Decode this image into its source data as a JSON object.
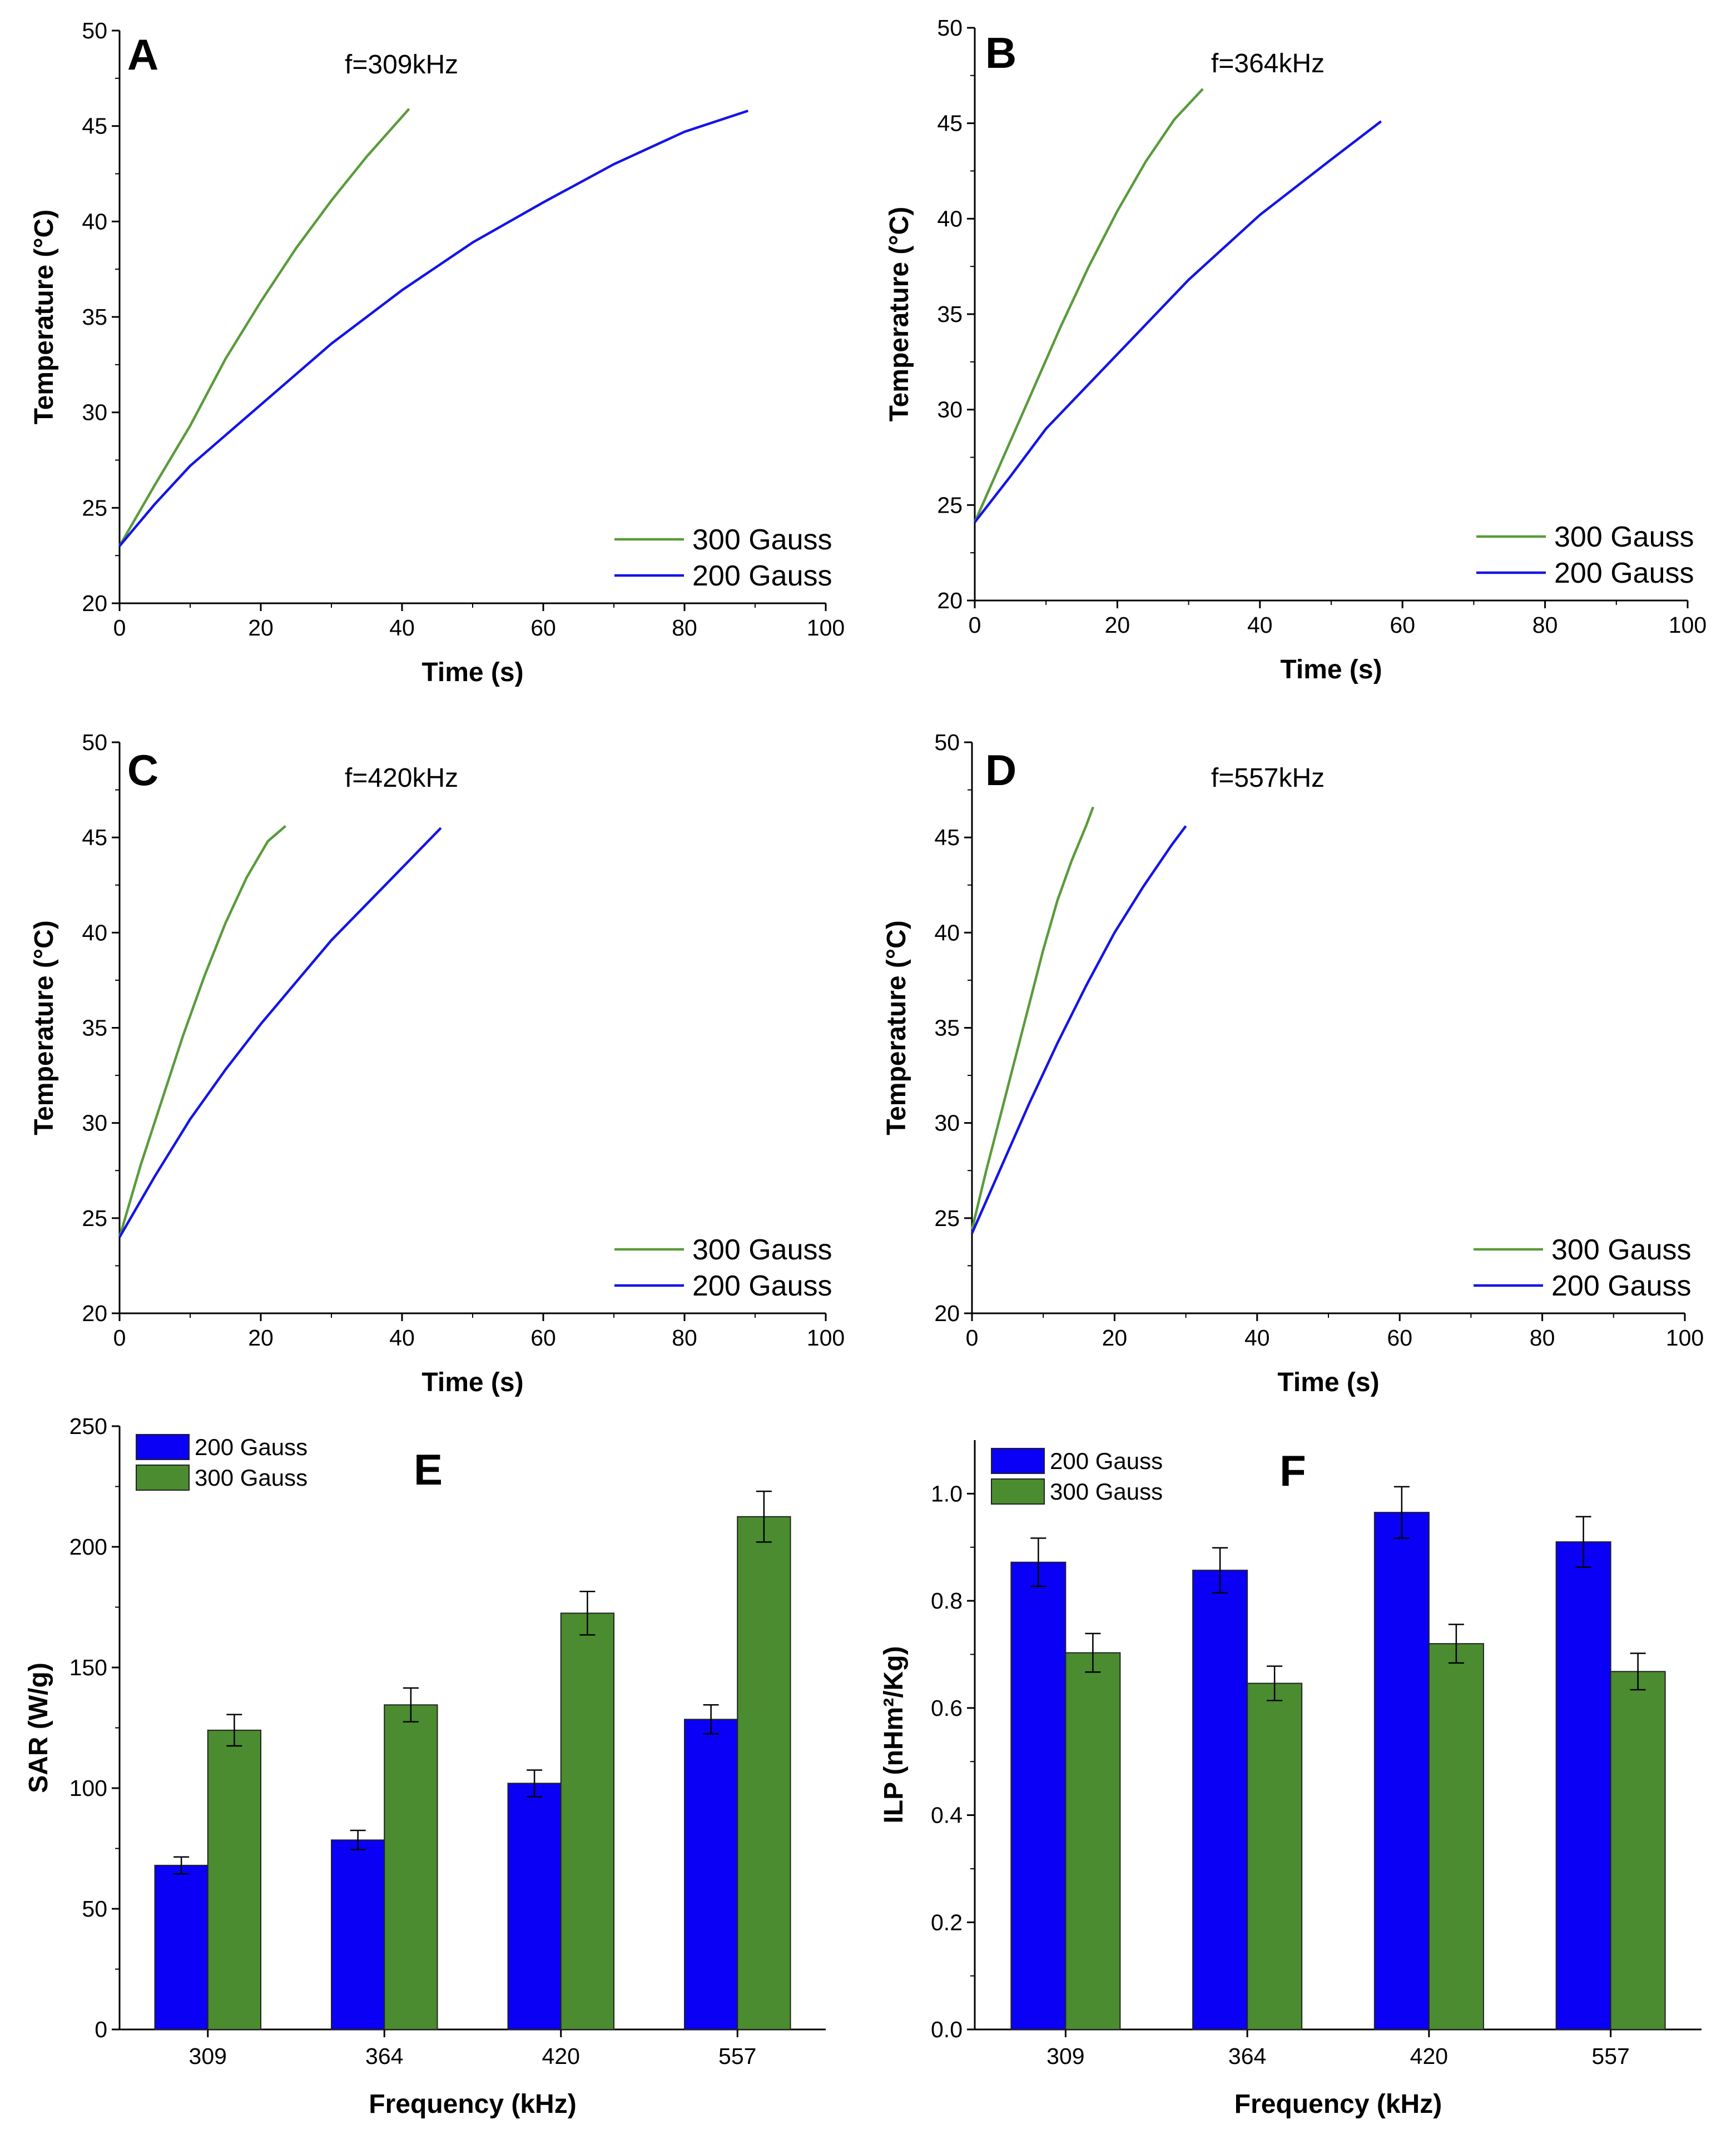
{
  "chart_data": [
    {
      "panel": "A",
      "type": "line",
      "annotation": "f=309kHz",
      "xlabel": "Time (s)",
      "ylabel": "Temperature (°C)",
      "xlim": [
        0,
        100
      ],
      "ylim": [
        20,
        50
      ],
      "xticks": [
        "0",
        "20",
        "40",
        "60",
        "80",
        "100"
      ],
      "yticks": [
        "20",
        "25",
        "30",
        "35",
        "40",
        "45",
        "50"
      ],
      "legend": [
        "300 Gauss",
        "200 Gauss"
      ],
      "series": [
        {
          "name": "300 Gauss",
          "color": "#5a9b3c",
          "x": [
            0,
            5,
            10,
            15,
            20,
            25,
            30,
            35,
            41
          ],
          "y": [
            23,
            26.2,
            29.3,
            32.8,
            35.8,
            38.6,
            41.1,
            43.4,
            45.9
          ]
        },
        {
          "name": "200 Gauss",
          "color": "#1414e6",
          "x": [
            0,
            5,
            10,
            20,
            30,
            40,
            50,
            60,
            70,
            80,
            89
          ],
          "y": [
            23,
            25.2,
            27.2,
            30.4,
            33.6,
            36.4,
            38.9,
            41,
            43,
            44.7,
            45.8
          ]
        }
      ]
    },
    {
      "panel": "B",
      "type": "line",
      "annotation": "f=364kHz",
      "xlabel": "Time (s)",
      "ylabel": "Temperature (°C)",
      "xlim": [
        0,
        100
      ],
      "ylim": [
        20,
        50
      ],
      "xticks": [
        "0",
        "20",
        "40",
        "60",
        "80",
        "100"
      ],
      "yticks": [
        "20",
        "25",
        "30",
        "35",
        "40",
        "45",
        "50"
      ],
      "legend": [
        "300 Gauss",
        "200 Gauss"
      ],
      "series": [
        {
          "name": "300 Gauss",
          "color": "#5a9b3c",
          "x": [
            0,
            4,
            8,
            12,
            16,
            20,
            24,
            28,
            32
          ],
          "y": [
            24.1,
            27.5,
            30.9,
            34.3,
            37.5,
            40.4,
            43,
            45.2,
            46.8
          ]
        },
        {
          "name": "200 Gauss",
          "color": "#1414e6",
          "x": [
            0,
            5,
            10,
            20,
            30,
            40,
            50,
            57
          ],
          "y": [
            24.1,
            26.5,
            29,
            32.9,
            36.8,
            40.2,
            43.1,
            45.1
          ]
        }
      ]
    },
    {
      "panel": "C",
      "type": "line",
      "annotation": "f=420kHz",
      "xlabel": "Time (s)",
      "ylabel": "Temperature (°C)",
      "xlim": [
        0,
        100
      ],
      "ylim": [
        20,
        50
      ],
      "xticks": [
        "0",
        "20",
        "40",
        "60",
        "80",
        "100"
      ],
      "yticks": [
        "20",
        "25",
        "30",
        "35",
        "40",
        "45",
        "50"
      ],
      "legend": [
        "300 Gauss",
        "200 Gauss"
      ],
      "series": [
        {
          "name": "300 Gauss",
          "color": "#5a9b3c",
          "x": [
            0,
            3,
            6,
            9,
            12,
            15,
            18,
            21,
            23.5
          ],
          "y": [
            24,
            27.8,
            31.2,
            34.6,
            37.7,
            40.5,
            42.9,
            44.8,
            45.6
          ]
        },
        {
          "name": "200 Gauss",
          "color": "#1414e6",
          "x": [
            0,
            5,
            10,
            15,
            20,
            25,
            30,
            35,
            40,
            45.5
          ],
          "y": [
            24,
            27.2,
            30.2,
            32.8,
            35.2,
            37.4,
            39.6,
            41.5,
            43.4,
            45.5
          ]
        }
      ]
    },
    {
      "panel": "D",
      "type": "line",
      "annotation": "f=557kHz",
      "xlabel": "Time (s)",
      "ylabel": "Temperature (°C)",
      "xlim": [
        0,
        100
      ],
      "ylim": [
        20,
        50
      ],
      "xticks": [
        "0",
        "20",
        "40",
        "60",
        "80",
        "100"
      ],
      "yticks": [
        "20",
        "25",
        "30",
        "35",
        "40",
        "45",
        "50"
      ],
      "legend": [
        "300 Gauss",
        "200 Gauss"
      ],
      "series": [
        {
          "name": "300 Gauss",
          "color": "#5a9b3c",
          "x": [
            0,
            2,
            4,
            6,
            8,
            10,
            12,
            14,
            16,
            17
          ],
          "y": [
            24.4,
            27.5,
            30.4,
            33.3,
            36.2,
            39.1,
            41.7,
            43.8,
            45.6,
            46.6
          ]
        },
        {
          "name": "200 Gauss",
          "color": "#1414e6",
          "x": [
            0,
            4,
            8,
            12,
            16,
            20,
            24,
            28,
            30
          ],
          "y": [
            24.2,
            27.6,
            31,
            34.2,
            37.2,
            40,
            42.4,
            44.6,
            45.6
          ]
        }
      ]
    },
    {
      "panel": "E",
      "type": "bar",
      "xlabel": "Frequency (kHz)",
      "ylabel": "SAR (W/g)",
      "ylim": [
        0,
        250
      ],
      "yticks": [
        "0",
        "50",
        "100",
        "150",
        "200",
        "250"
      ],
      "categories": [
        "309",
        "364",
        "420",
        "557"
      ],
      "series": [
        {
          "name": "200 Gauss",
          "color": "#0a00f5",
          "values": [
            68,
            78.5,
            102,
            128.5
          ],
          "errors": [
            3.5,
            4,
            5.5,
            6
          ]
        },
        {
          "name": "300 Gauss",
          "color": "#4a8c2f",
          "values": [
            124,
            134.5,
            172.5,
            212.5
          ],
          "errors": [
            6.5,
            7,
            9,
            10.5
          ]
        }
      ]
    },
    {
      "panel": "F",
      "type": "bar",
      "xlabel": "Frequency (kHz)",
      "ylabel": "ILP (nHm²/Kg)",
      "ylim": [
        0,
        1.1
      ],
      "yticks": [
        "0.0",
        "0.2",
        "0.4",
        "0.6",
        "0.8",
        "1.0"
      ],
      "categories": [
        "309",
        "364",
        "420",
        "557"
      ],
      "series": [
        {
          "name": "200 Gauss",
          "color": "#0a00f5",
          "values": [
            0.872,
            0.857,
            0.965,
            0.91
          ],
          "errors": [
            0.045,
            0.042,
            0.048,
            0.047
          ]
        },
        {
          "name": "300 Gauss",
          "color": "#4a8c2f",
          "values": [
            0.703,
            0.646,
            0.72,
            0.668
          ],
          "errors": [
            0.036,
            0.032,
            0.036,
            0.034
          ]
        }
      ]
    }
  ]
}
